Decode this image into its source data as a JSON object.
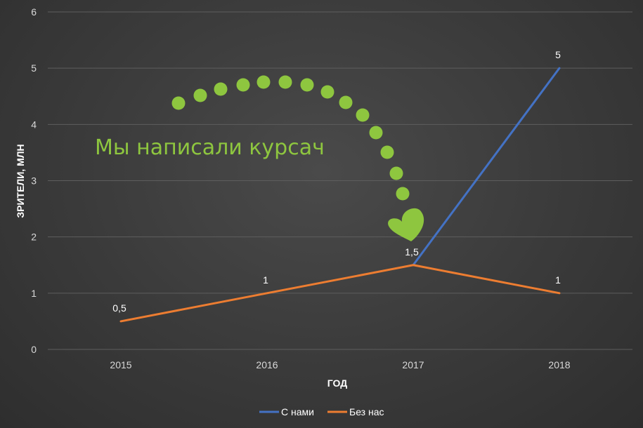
{
  "chart_data": {
    "type": "line",
    "xlabel": "ГОД",
    "ylabel": "ЗРИТЕЛИ, МЛН",
    "categories": [
      "2015",
      "2016",
      "2017",
      "2018"
    ],
    "ylim": [
      0,
      6
    ],
    "yticks": [
      "0",
      "1",
      "2",
      "3",
      "4",
      "5",
      "6"
    ],
    "grid": true,
    "legend_position": "bottom",
    "series": [
      {
        "name": "С нами",
        "color": "#4472c4",
        "values": [
          null,
          null,
          1.5,
          5
        ],
        "labels": [
          "",
          "",
          "",
          "5"
        ]
      },
      {
        "name": "Без нас",
        "color": "#ed7d31",
        "values": [
          0.5,
          1,
          1.5,
          1
        ],
        "labels": [
          "0,5",
          "1",
          "1,5",
          "1"
        ]
      }
    ],
    "annotation": {
      "text": "Мы написали курсач",
      "color": "#8ec63f"
    }
  }
}
